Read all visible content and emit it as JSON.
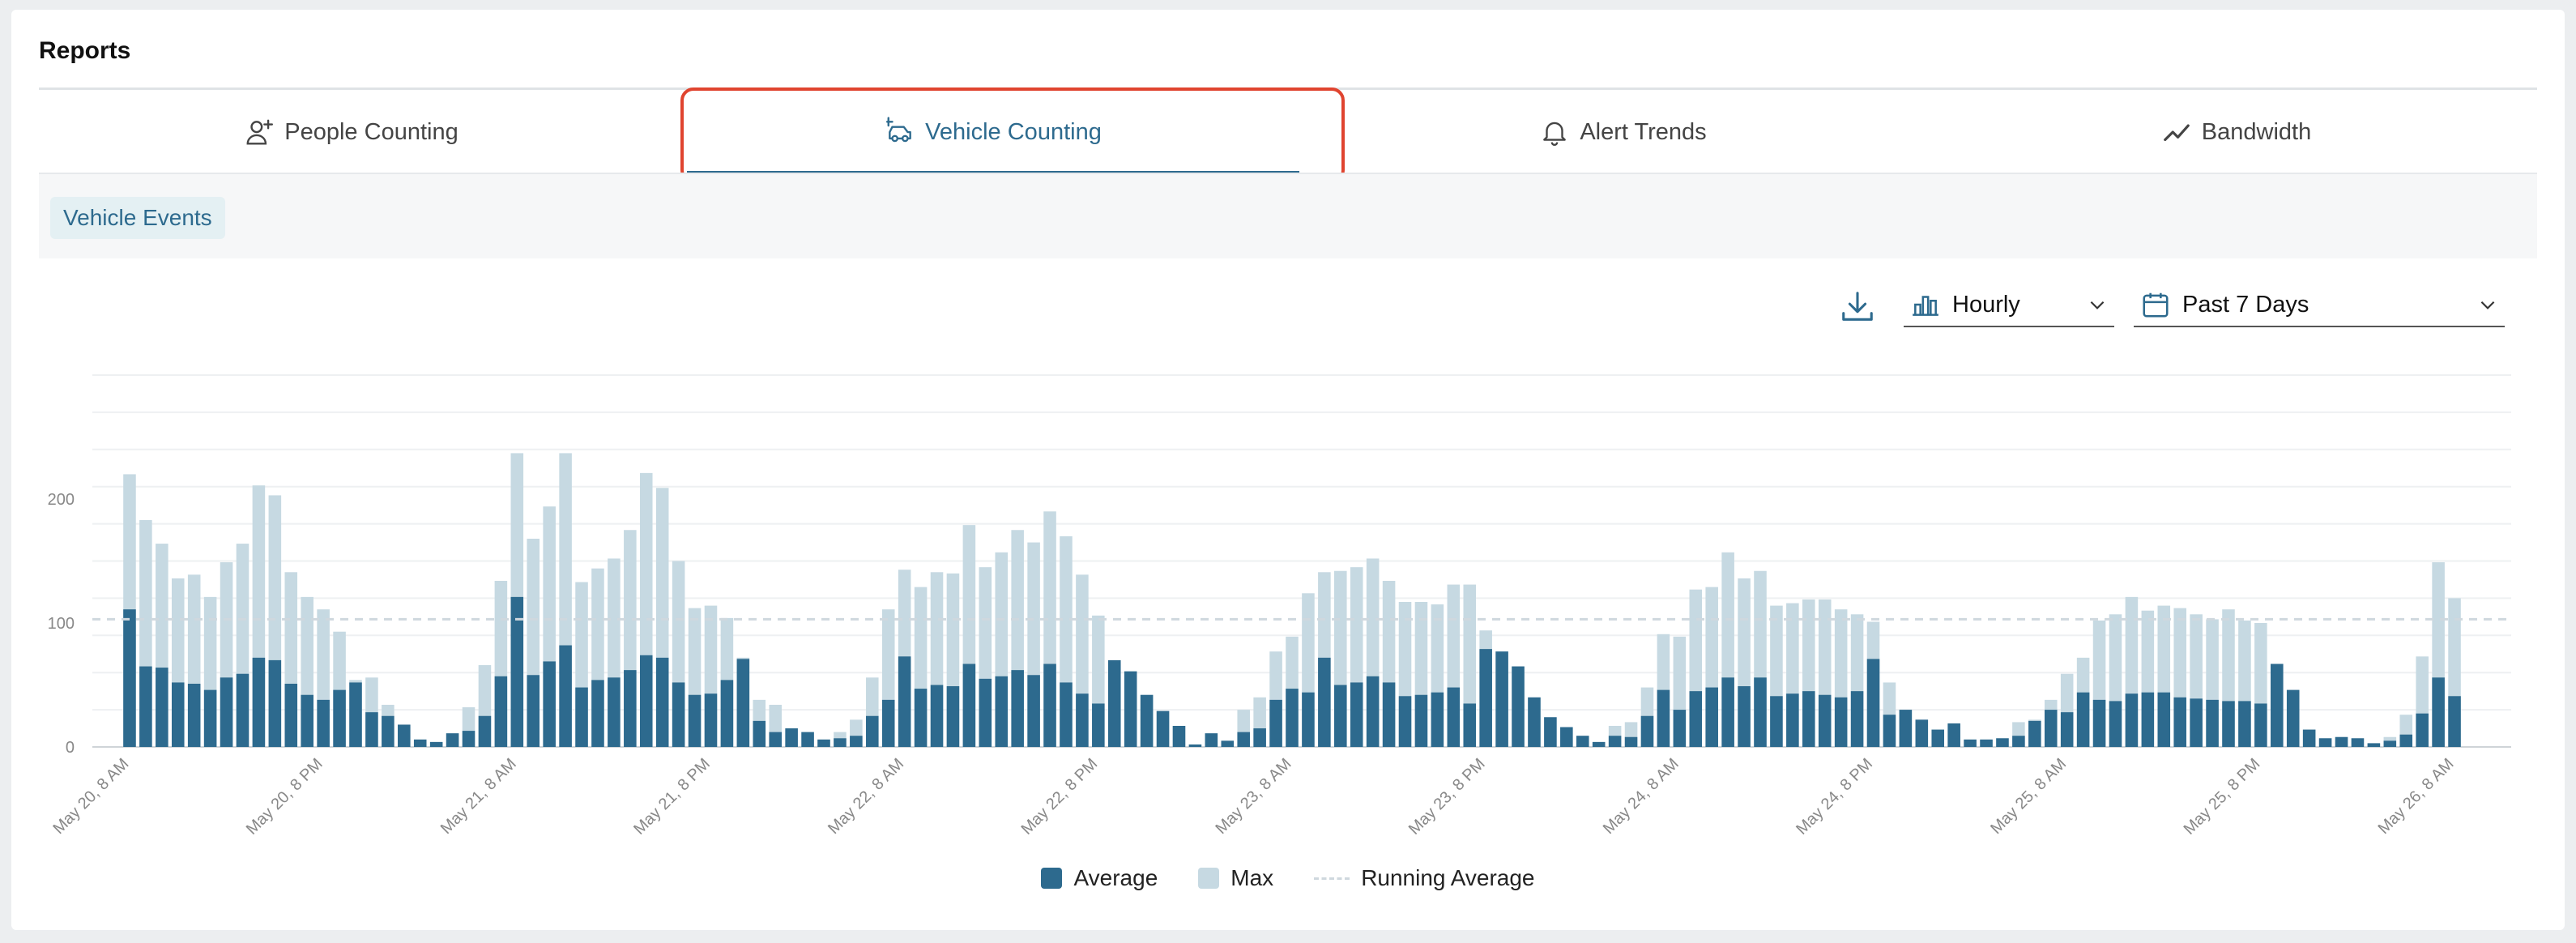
{
  "page": {
    "title": "Reports"
  },
  "tabs": [
    {
      "label": "People Counting",
      "icon": "person-add-icon",
      "active": false
    },
    {
      "label": "Vehicle Counting",
      "icon": "vehicle-icon",
      "active": true
    },
    {
      "label": "Alert Trends",
      "icon": "bell-icon",
      "active": false
    },
    {
      "label": "Bandwidth",
      "icon": "trend-line-icon",
      "active": false
    }
  ],
  "subbar": {
    "chip_label": "Vehicle Events"
  },
  "controls": {
    "download_icon": "download-icon",
    "interval": {
      "value": "Hourly",
      "icon": "bar-chart-icon"
    },
    "range": {
      "value": "Past 7 Days",
      "icon": "calendar-icon"
    }
  },
  "colors": {
    "accent": "#2d6a8e",
    "average": "#2d6a8e",
    "max": "#c6d9e2",
    "running_average": "#cfd8de",
    "tab_highlight": "#e0442f"
  },
  "chart_data": {
    "type": "bar",
    "ylim": [
      0,
      240
    ],
    "yticks": [
      0,
      100,
      200
    ],
    "grid": true,
    "x_tick_labels": [
      "May 20, 8 AM",
      "May 20, 8 PM",
      "May 21, 8 AM",
      "May 21, 8 PM",
      "May 22, 8 AM",
      "May 22, 8 PM",
      "May 23, 8 AM",
      "May 23, 8 PM",
      "May 24, 8 AM",
      "May 24, 8 PM",
      "May 25, 8 AM",
      "May 25, 8 PM",
      "May 26, 8 AM"
    ],
    "running_average": 103,
    "legend_position": "bottom",
    "series": [
      {
        "name": "Average",
        "values": [
          111,
          65,
          64,
          52,
          51,
          46,
          56,
          59,
          72,
          70,
          51,
          42,
          38,
          46,
          52,
          28,
          25,
          18,
          6,
          4,
          11,
          13,
          25,
          57,
          121,
          58,
          69,
          82,
          48,
          54,
          56,
          62,
          74,
          72,
          52,
          42,
          43,
          54,
          71,
          21,
          12,
          15,
          12,
          6,
          7,
          9,
          25,
          38,
          73,
          47,
          50,
          49,
          67,
          55,
          57,
          62,
          58,
          67,
          52,
          43,
          35,
          70,
          61,
          42,
          29,
          17,
          2,
          11,
          5,
          12,
          15,
          38,
          47,
          44,
          72,
          50,
          52,
          57,
          52,
          41,
          42,
          44,
          48,
          35,
          79,
          77,
          65,
          40,
          24,
          16,
          9,
          4,
          9,
          8,
          25,
          46,
          30,
          45,
          48,
          56,
          49,
          56,
          41,
          43,
          45,
          42,
          40,
          45,
          71,
          26,
          30,
          22,
          14,
          19,
          6,
          6,
          7,
          9,
          21,
          30,
          28,
          44,
          38,
          37,
          43,
          44,
          44,
          40,
          39,
          38,
          37,
          37,
          35,
          67,
          46,
          14,
          7,
          8,
          7,
          3,
          5,
          10,
          27,
          56,
          41
        ]
      },
      {
        "name": "Max",
        "values": [
          220,
          183,
          164,
          136,
          139,
          121,
          149,
          164,
          211,
          203,
          141,
          121,
          111,
          93,
          54,
          56,
          34,
          18,
          6,
          4,
          11,
          32,
          66,
          134,
          237,
          168,
          194,
          237,
          133,
          144,
          152,
          175,
          221,
          209,
          150,
          112,
          114,
          104,
          72,
          38,
          34,
          15,
          12,
          6,
          12,
          22,
          56,
          111,
          143,
          129,
          141,
          140,
          179,
          145,
          157,
          175,
          165,
          190,
          170,
          139,
          106,
          69,
          61,
          42,
          29,
          17,
          2,
          11,
          5,
          30,
          40,
          77,
          89,
          124,
          141,
          142,
          145,
          152,
          134,
          117,
          117,
          115,
          131,
          131,
          94,
          77,
          65,
          40,
          24,
          16,
          9,
          4,
          17,
          20,
          48,
          91,
          89,
          127,
          129,
          157,
          136,
          142,
          114,
          116,
          119,
          119,
          111,
          107,
          101,
          52,
          30,
          22,
          14,
          19,
          6,
          6,
          7,
          20,
          22,
          38,
          59,
          72,
          102,
          107,
          121,
          110,
          114,
          112,
          107,
          103,
          111,
          102,
          100,
          67,
          46,
          14,
          7,
          8,
          7,
          3,
          8,
          26,
          73,
          149,
          120
        ]
      }
    ]
  }
}
